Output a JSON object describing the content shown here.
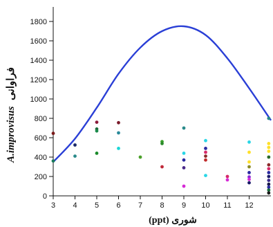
{
  "chart_data": {
    "type": "scatter",
    "xlabel": "شوری (ppt)",
    "ylabel_italic": "A.improvisus",
    "ylabel_rest": "فراوانی",
    "xlim": [
      3,
      13
    ],
    "ylim": [
      0,
      1950
    ],
    "x_ticks": [
      3,
      4,
      5,
      6,
      7,
      8,
      9,
      10,
      11,
      12
    ],
    "y_ticks": [
      0,
      200,
      400,
      600,
      800,
      1000,
      1200,
      1400,
      1600,
      1800
    ],
    "curve": {
      "name": "",
      "color": "#2a3fd6",
      "x": [
        3,
        4,
        5,
        6,
        7,
        8,
        9,
        10,
        11,
        12,
        13
      ],
      "y": [
        350,
        590,
        910,
        1260,
        1530,
        1700,
        1750,
        1660,
        1420,
        1110,
        780
      ]
    },
    "points": [
      {
        "x": 3,
        "y": 645,
        "color": "#7a1a1a"
      },
      {
        "x": 3,
        "y": 360,
        "color": "#1a7a5a"
      },
      {
        "x": 4,
        "y": 525,
        "color": "#1a2a6a"
      },
      {
        "x": 4,
        "y": 410,
        "color": "#2a8a8a"
      },
      {
        "x": 5,
        "y": 760,
        "color": "#8a1a3a"
      },
      {
        "x": 5,
        "y": 690,
        "color": "#1a6a3a"
      },
      {
        "x": 5,
        "y": 670,
        "color": "#1a8a4a"
      },
      {
        "x": 5,
        "y": 440,
        "color": "#1a8a2a"
      },
      {
        "x": 6,
        "y": 755,
        "color": "#7a1a2a"
      },
      {
        "x": 6,
        "y": 650,
        "color": "#2a8a9a"
      },
      {
        "x": 6,
        "y": 490,
        "color": "#1ad6d6"
      },
      {
        "x": 7,
        "y": 400,
        "color": "#4aa02a"
      },
      {
        "x": 8,
        "y": 560,
        "color": "#3aa02a"
      },
      {
        "x": 8,
        "y": 540,
        "color": "#2a8a2a"
      },
      {
        "x": 8,
        "y": 300,
        "color": "#c02a3a"
      },
      {
        "x": 9,
        "y": 700,
        "color": "#2a8a8a"
      },
      {
        "x": 9,
        "y": 440,
        "color": "#2ad6e6"
      },
      {
        "x": 9,
        "y": 370,
        "color": "#2a2aa0"
      },
      {
        "x": 9,
        "y": 290,
        "color": "#4a2a8a"
      },
      {
        "x": 9,
        "y": 100,
        "color": "#d62ad6"
      },
      {
        "x": 10,
        "y": 570,
        "color": "#2ad6e6"
      },
      {
        "x": 10,
        "y": 490,
        "color": "#2a2aa0"
      },
      {
        "x": 10,
        "y": 450,
        "color": "#d62a6a"
      },
      {
        "x": 10,
        "y": 410,
        "color": "#8a2a2a"
      },
      {
        "x": 10,
        "y": 370,
        "color": "#c02a2a"
      },
      {
        "x": 10,
        "y": 210,
        "color": "#2ad6e6"
      },
      {
        "x": 11,
        "y": 200,
        "color": "#d62a6a"
      },
      {
        "x": 11,
        "y": 165,
        "color": "#d62ad6"
      },
      {
        "x": 12,
        "y": 555,
        "color": "#2ad6e6"
      },
      {
        "x": 12,
        "y": 450,
        "color": "#ffe02a"
      },
      {
        "x": 12,
        "y": 350,
        "color": "#ffe02a"
      },
      {
        "x": 12,
        "y": 300,
        "color": "#8a8a2a"
      },
      {
        "x": 12,
        "y": 240,
        "color": "#2a2aa0"
      },
      {
        "x": 12,
        "y": 195,
        "color": "#8a2ad6"
      },
      {
        "x": 12,
        "y": 170,
        "color": "#d62ad6"
      },
      {
        "x": 12,
        "y": 135,
        "color": "#1a1a6a"
      },
      {
        "x": 12.9,
        "y": 800,
        "color": "#2a8a8a"
      },
      {
        "x": 12.9,
        "y": 540,
        "color": "#ffe02a"
      },
      {
        "x": 12.9,
        "y": 500,
        "color": "#ffe02a"
      },
      {
        "x": 12.9,
        "y": 460,
        "color": "#ffe02a"
      },
      {
        "x": 12.9,
        "y": 400,
        "color": "#2a6a2a"
      },
      {
        "x": 12.9,
        "y": 320,
        "color": "#8a2a2a"
      },
      {
        "x": 12.9,
        "y": 280,
        "color": "#d62a6a"
      },
      {
        "x": 12.9,
        "y": 240,
        "color": "#2a2aa0"
      },
      {
        "x": 12.9,
        "y": 200,
        "color": "#1a1a6a"
      },
      {
        "x": 12.9,
        "y": 160,
        "color": "#3a2a8a"
      },
      {
        "x": 12.9,
        "y": 120,
        "color": "#1a1a4a"
      },
      {
        "x": 12.9,
        "y": 90,
        "color": "#2a2aa0"
      },
      {
        "x": 12.9,
        "y": 60,
        "color": "#1a6a3a"
      },
      {
        "x": 12.9,
        "y": 30,
        "color": "#1a1a1a"
      }
    ]
  }
}
